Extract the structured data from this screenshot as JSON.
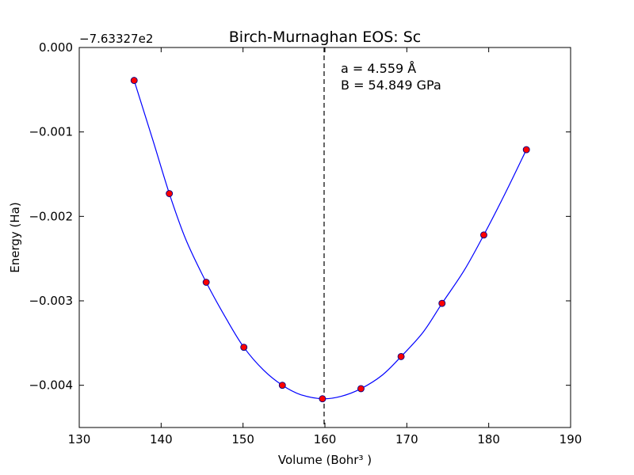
{
  "chart_data": {
    "type": "scatter",
    "title": "Birch-Murnaghan EOS: Sc",
    "xlabel": "Volume (Bohr³ )",
    "ylabel": "Energy (Ha)",
    "y_offset_label": "−7.63327e2",
    "xlim": [
      130,
      190
    ],
    "ylim": [
      -0.0045,
      0.0
    ],
    "xticks": [
      130,
      140,
      150,
      160,
      170,
      180,
      190
    ],
    "xtick_labels": [
      "130",
      "140",
      "150",
      "160",
      "170",
      "180",
      "190"
    ],
    "yticks": [
      0.0,
      -0.001,
      -0.002,
      -0.003,
      -0.004
    ],
    "ytick_labels": [
      "0.000",
      "−0.001",
      "−0.002",
      "−0.003",
      "−0.004"
    ],
    "grid": false,
    "series": [
      {
        "kind": "points",
        "color": "#ff0000",
        "edge_color": "#00008b",
        "x": [
          136.7,
          141.0,
          145.5,
          150.1,
          154.8,
          159.7,
          164.4,
          169.3,
          174.3,
          179.4,
          184.6
        ],
        "y": [
          -0.00039,
          -0.00173,
          -0.00278,
          -0.00355,
          -0.004,
          -0.00416,
          -0.00404,
          -0.00366,
          -0.00303,
          -0.00222,
          -0.00121
        ]
      },
      {
        "kind": "fit-curve",
        "color": "#0000ff",
        "x": [
          136.7,
          139.0,
          141.0,
          143.0,
          145.5,
          148.0,
          150.1,
          152.5,
          154.8,
          157.0,
          159.7,
          162.0,
          164.4,
          167.0,
          169.3,
          172.0,
          174.3,
          177.0,
          179.4,
          182.0,
          184.6
        ],
        "y": [
          -0.00039,
          -0.0011,
          -0.00173,
          -0.00227,
          -0.00278,
          -0.00322,
          -0.00355,
          -0.00382,
          -0.004,
          -0.00411,
          -0.00416,
          -0.00413,
          -0.00404,
          -0.00388,
          -0.00366,
          -0.00337,
          -0.00303,
          -0.00264,
          -0.00222,
          -0.00173,
          -0.00121
        ]
      }
    ],
    "vline": {
      "x": 159.9,
      "style": "dashed",
      "color": "#000000"
    },
    "annotations": [
      {
        "text": "a = 4.559 Å"
      },
      {
        "text": "B = 54.849 GPa"
      }
    ]
  }
}
